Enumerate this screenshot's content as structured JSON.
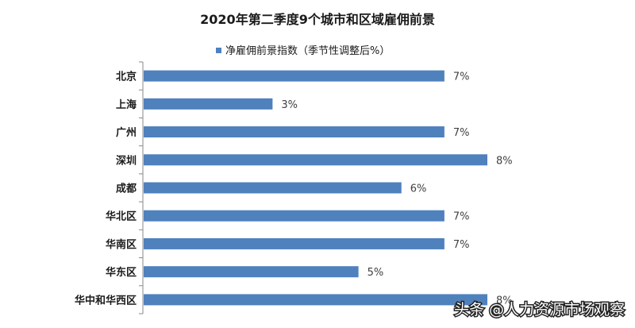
{
  "chart_data": {
    "type": "bar",
    "orientation": "horizontal",
    "title": "2020年第二季度9个城市和区域雇佣前景",
    "categories": [
      "北京",
      "上海",
      "广州",
      "深圳",
      "成都",
      "华北区",
      "华南区",
      "华东区",
      "华中和华西区"
    ],
    "series": [
      {
        "name": "净雇佣前景指数（季节性调整后%）",
        "values": [
          7,
          3,
          7,
          8,
          6,
          7,
          7,
          5,
          8
        ],
        "data_labels": [
          "7%",
          "3%",
          "7%",
          "8%",
          "6%",
          "7%",
          "7%",
          "5%",
          "8%"
        ],
        "color": "#4f81bd"
      }
    ],
    "xlim": [
      0,
      8
    ],
    "legend_position": "top",
    "grid": false
  },
  "watermark": {
    "text": "头条 @人力资源市场观察"
  }
}
